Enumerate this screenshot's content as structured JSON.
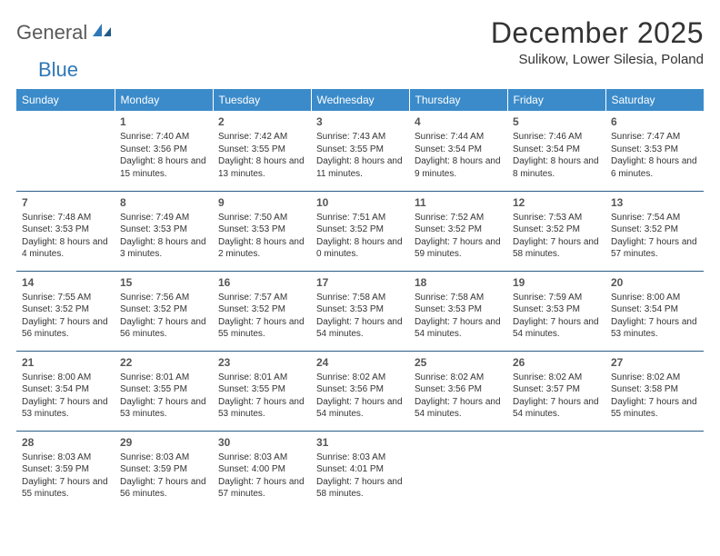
{
  "logo": {
    "word1": "General",
    "word2": "Blue"
  },
  "title": "December 2025",
  "location": "Sulikow, Lower Silesia, Poland",
  "colors": {
    "header_bg": "#3b8bca",
    "header_text": "#ffffff",
    "row_border": "#2a5d86",
    "text": "#333333",
    "logo_gray": "#5a5a5a",
    "logo_blue": "#2f78b7"
  },
  "weekdays": [
    "Sunday",
    "Monday",
    "Tuesday",
    "Wednesday",
    "Thursday",
    "Friday",
    "Saturday"
  ],
  "weeks": [
    [
      null,
      {
        "n": "1",
        "sr": "7:40 AM",
        "ss": "3:56 PM",
        "dl": "8 hours and 15 minutes."
      },
      {
        "n": "2",
        "sr": "7:42 AM",
        "ss": "3:55 PM",
        "dl": "8 hours and 13 minutes."
      },
      {
        "n": "3",
        "sr": "7:43 AM",
        "ss": "3:55 PM",
        "dl": "8 hours and 11 minutes."
      },
      {
        "n": "4",
        "sr": "7:44 AM",
        "ss": "3:54 PM",
        "dl": "8 hours and 9 minutes."
      },
      {
        "n": "5",
        "sr": "7:46 AM",
        "ss": "3:54 PM",
        "dl": "8 hours and 8 minutes."
      },
      {
        "n": "6",
        "sr": "7:47 AM",
        "ss": "3:53 PM",
        "dl": "8 hours and 6 minutes."
      }
    ],
    [
      {
        "n": "7",
        "sr": "7:48 AM",
        "ss": "3:53 PM",
        "dl": "8 hours and 4 minutes."
      },
      {
        "n": "8",
        "sr": "7:49 AM",
        "ss": "3:53 PM",
        "dl": "8 hours and 3 minutes."
      },
      {
        "n": "9",
        "sr": "7:50 AM",
        "ss": "3:53 PM",
        "dl": "8 hours and 2 minutes."
      },
      {
        "n": "10",
        "sr": "7:51 AM",
        "ss": "3:52 PM",
        "dl": "8 hours and 0 minutes."
      },
      {
        "n": "11",
        "sr": "7:52 AM",
        "ss": "3:52 PM",
        "dl": "7 hours and 59 minutes."
      },
      {
        "n": "12",
        "sr": "7:53 AM",
        "ss": "3:52 PM",
        "dl": "7 hours and 58 minutes."
      },
      {
        "n": "13",
        "sr": "7:54 AM",
        "ss": "3:52 PM",
        "dl": "7 hours and 57 minutes."
      }
    ],
    [
      {
        "n": "14",
        "sr": "7:55 AM",
        "ss": "3:52 PM",
        "dl": "7 hours and 56 minutes."
      },
      {
        "n": "15",
        "sr": "7:56 AM",
        "ss": "3:52 PM",
        "dl": "7 hours and 56 minutes."
      },
      {
        "n": "16",
        "sr": "7:57 AM",
        "ss": "3:52 PM",
        "dl": "7 hours and 55 minutes."
      },
      {
        "n": "17",
        "sr": "7:58 AM",
        "ss": "3:53 PM",
        "dl": "7 hours and 54 minutes."
      },
      {
        "n": "18",
        "sr": "7:58 AM",
        "ss": "3:53 PM",
        "dl": "7 hours and 54 minutes."
      },
      {
        "n": "19",
        "sr": "7:59 AM",
        "ss": "3:53 PM",
        "dl": "7 hours and 54 minutes."
      },
      {
        "n": "20",
        "sr": "8:00 AM",
        "ss": "3:54 PM",
        "dl": "7 hours and 53 minutes."
      }
    ],
    [
      {
        "n": "21",
        "sr": "8:00 AM",
        "ss": "3:54 PM",
        "dl": "7 hours and 53 minutes."
      },
      {
        "n": "22",
        "sr": "8:01 AM",
        "ss": "3:55 PM",
        "dl": "7 hours and 53 minutes."
      },
      {
        "n": "23",
        "sr": "8:01 AM",
        "ss": "3:55 PM",
        "dl": "7 hours and 53 minutes."
      },
      {
        "n": "24",
        "sr": "8:02 AM",
        "ss": "3:56 PM",
        "dl": "7 hours and 54 minutes."
      },
      {
        "n": "25",
        "sr": "8:02 AM",
        "ss": "3:56 PM",
        "dl": "7 hours and 54 minutes."
      },
      {
        "n": "26",
        "sr": "8:02 AM",
        "ss": "3:57 PM",
        "dl": "7 hours and 54 minutes."
      },
      {
        "n": "27",
        "sr": "8:02 AM",
        "ss": "3:58 PM",
        "dl": "7 hours and 55 minutes."
      }
    ],
    [
      {
        "n": "28",
        "sr": "8:03 AM",
        "ss": "3:59 PM",
        "dl": "7 hours and 55 minutes."
      },
      {
        "n": "29",
        "sr": "8:03 AM",
        "ss": "3:59 PM",
        "dl": "7 hours and 56 minutes."
      },
      {
        "n": "30",
        "sr": "8:03 AM",
        "ss": "4:00 PM",
        "dl": "7 hours and 57 minutes."
      },
      {
        "n": "31",
        "sr": "8:03 AM",
        "ss": "4:01 PM",
        "dl": "7 hours and 58 minutes."
      },
      null,
      null,
      null
    ]
  ],
  "labels": {
    "sunrise": "Sunrise: ",
    "sunset": "Sunset: ",
    "daylight": "Daylight: "
  }
}
